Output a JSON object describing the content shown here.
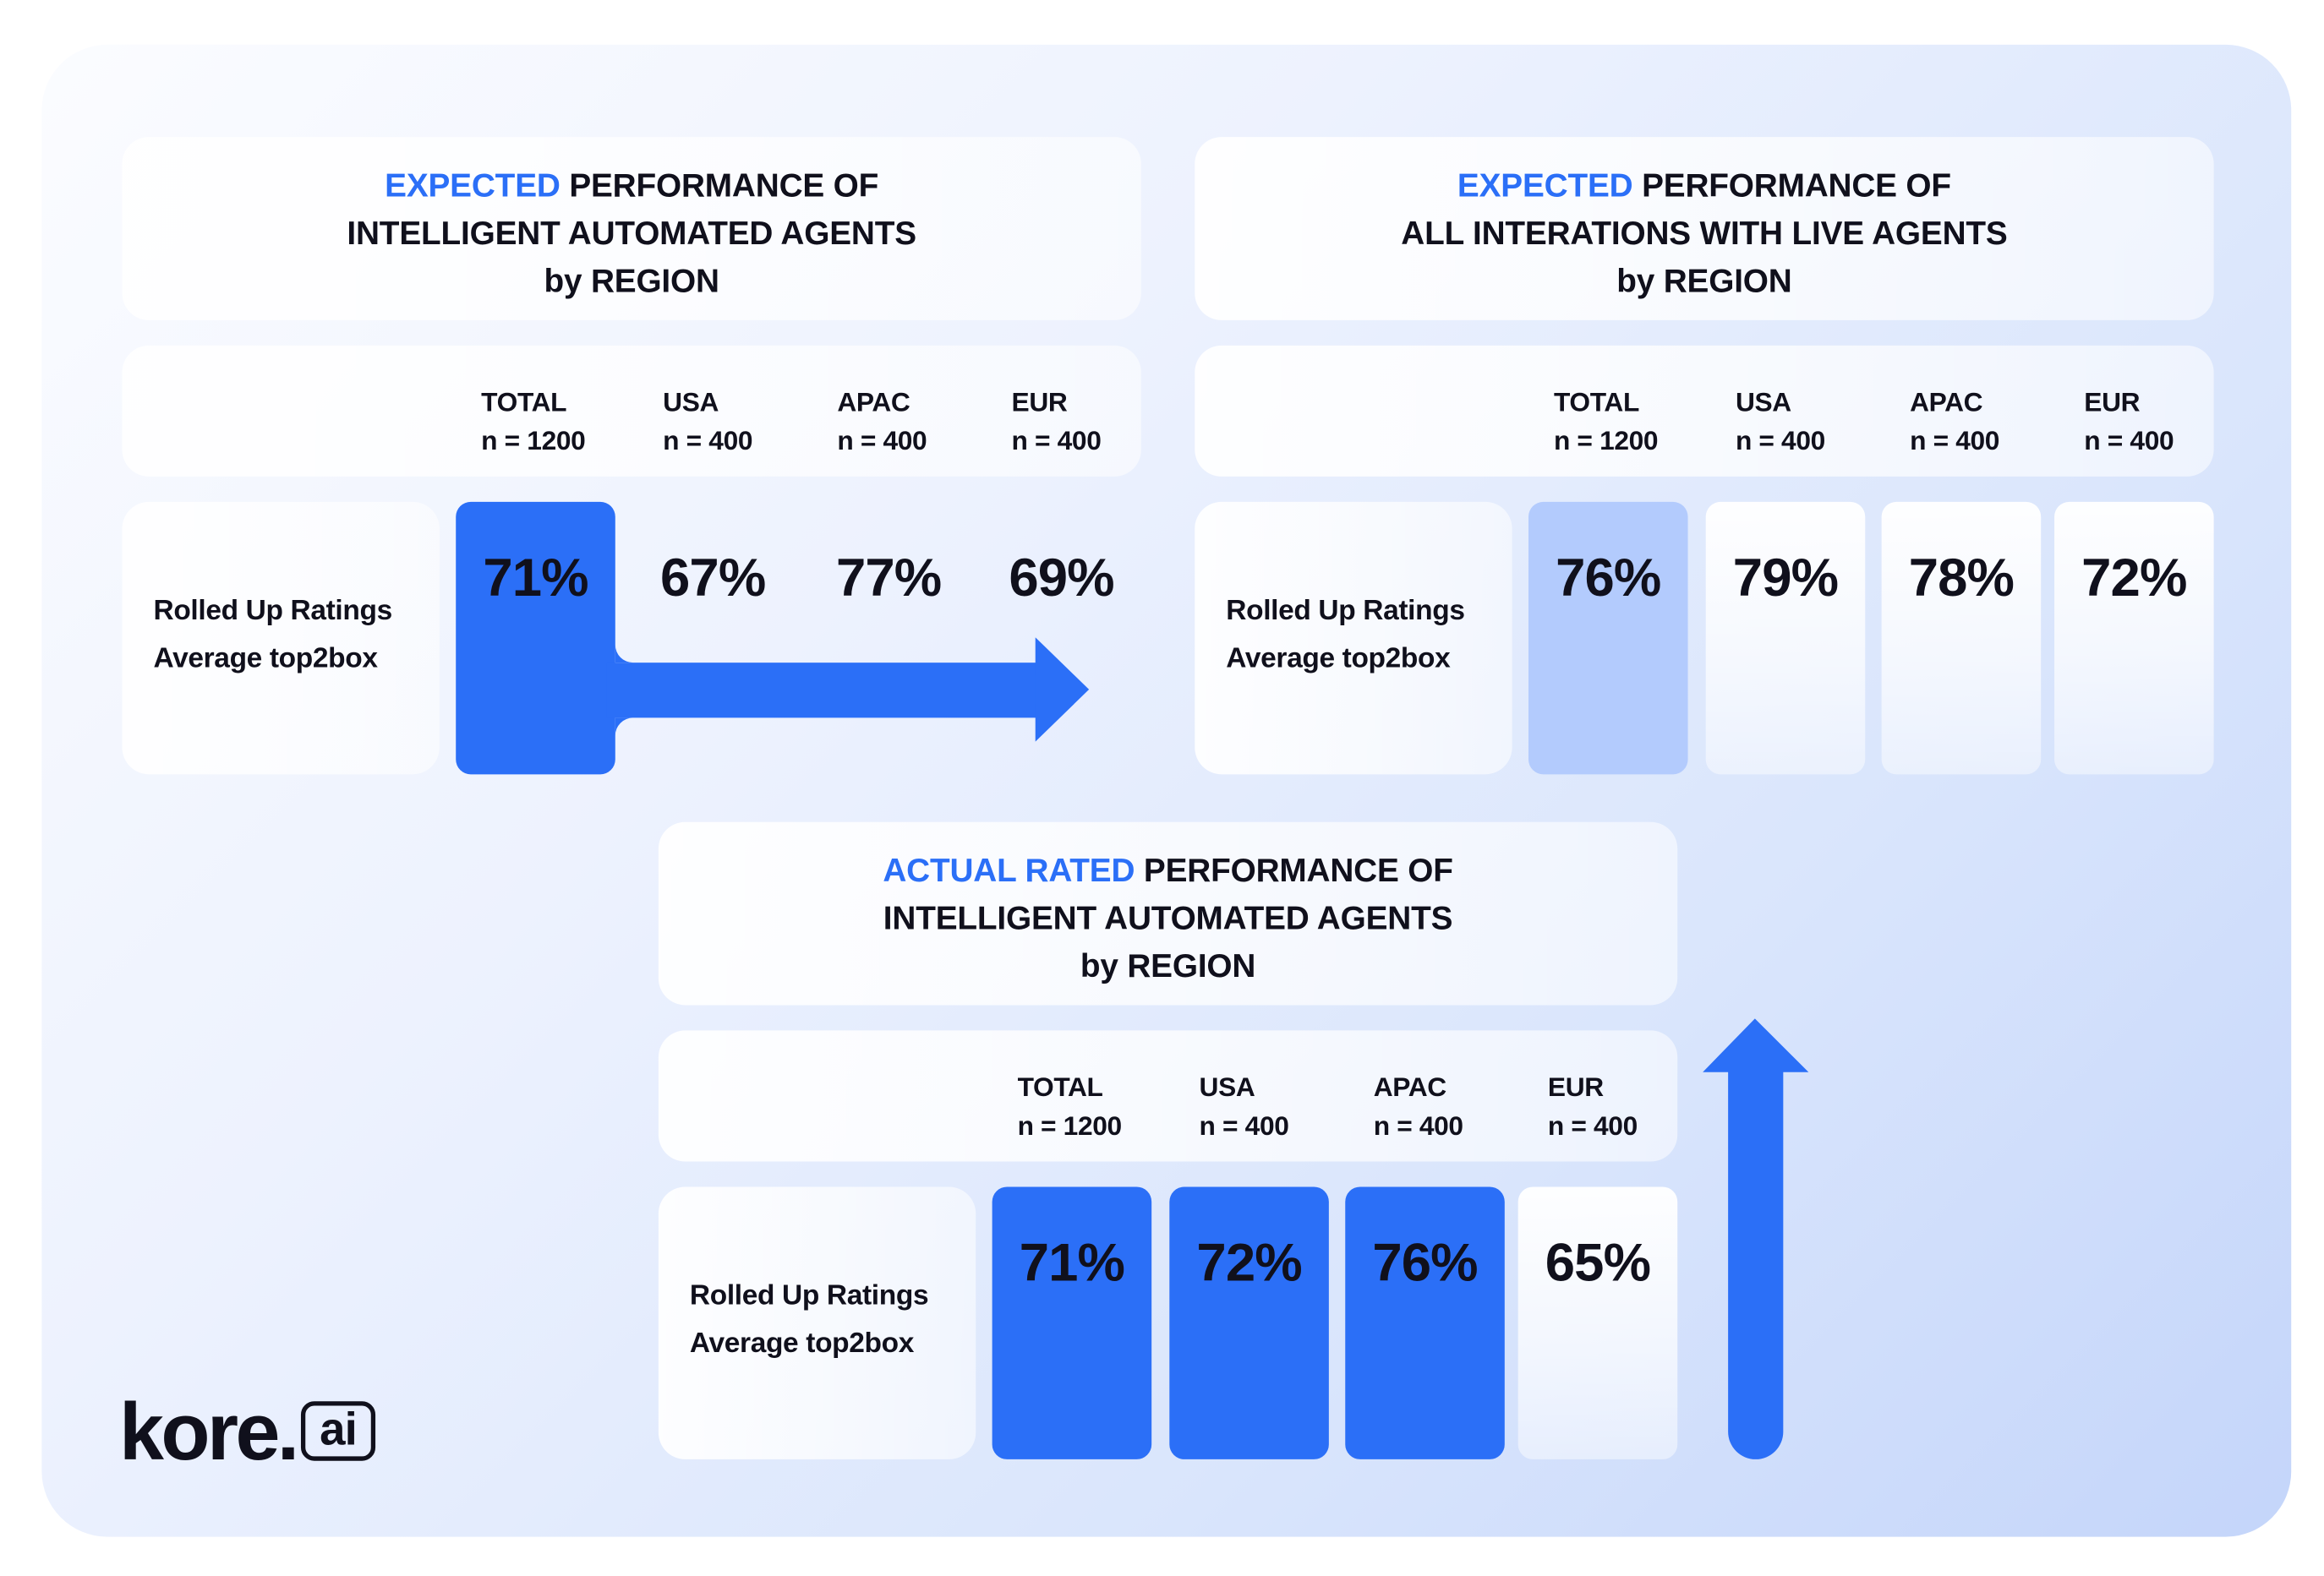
{
  "colors": {
    "accent": "#2b6ff7",
    "accent_light": "#b3cbfd",
    "text": "#10101c"
  },
  "icons": {
    "connector_1": "arrow-right",
    "connector_2": "arrow-up"
  },
  "chart_data": [
    {
      "type": "table",
      "title_highlight": "EXPECTED",
      "title_rest": "PERFORMANCE OF",
      "title_line2": "INTELLIGENT AUTOMATED AGENTS",
      "title_line3": "by REGION",
      "columns": [
        {
          "label": "TOTAL",
          "n": "n = 1200"
        },
        {
          "label": "USA",
          "n": "n = 400"
        },
        {
          "label": "APAC",
          "n": "n = 400"
        },
        {
          "label": "EUR",
          "n": "n = 400"
        }
      ],
      "row_label": [
        "Rolled Up Ratings",
        "Average top2box"
      ],
      "values": [
        71,
        67,
        77,
        69
      ],
      "unit": "%",
      "cell_fill": [
        "accent",
        "none",
        "none",
        "none"
      ]
    },
    {
      "type": "table",
      "title_highlight": "EXPECTED",
      "title_rest": "PERFORMANCE OF",
      "title_line2": "ALL INTERATIONS WITH LIVE AGENTS",
      "title_line3": "by REGION",
      "columns": [
        {
          "label": "TOTAL",
          "n": "n = 1200"
        },
        {
          "label": "USA",
          "n": "n = 400"
        },
        {
          "label": "APAC",
          "n": "n = 400"
        },
        {
          "label": "EUR",
          "n": "n = 400"
        }
      ],
      "row_label": [
        "Rolled Up Ratings",
        "Average top2box"
      ],
      "values": [
        76,
        79,
        78,
        72
      ],
      "unit": "%",
      "cell_fill": [
        "accent_light",
        "white",
        "white",
        "white"
      ]
    },
    {
      "type": "table",
      "title_highlight": "ACTUAL RATED",
      "title_rest": "PERFORMANCE OF",
      "title_line2": "INTELLIGENT AUTOMATED AGENTS",
      "title_line3": "by REGION",
      "columns": [
        {
          "label": "TOTAL",
          "n": "n = 1200"
        },
        {
          "label": "USA",
          "n": "n = 400"
        },
        {
          "label": "APAC",
          "n": "n = 400"
        },
        {
          "label": "EUR",
          "n": "n = 400"
        }
      ],
      "row_label": [
        "Rolled Up Ratings",
        "Average top2box"
      ],
      "values": [
        71,
        72,
        76,
        65
      ],
      "unit": "%",
      "cell_fill": [
        "accent",
        "accent",
        "accent",
        "white"
      ]
    }
  ],
  "logo": {
    "name": "kore",
    "dot": ".",
    "suffix": "ai"
  }
}
